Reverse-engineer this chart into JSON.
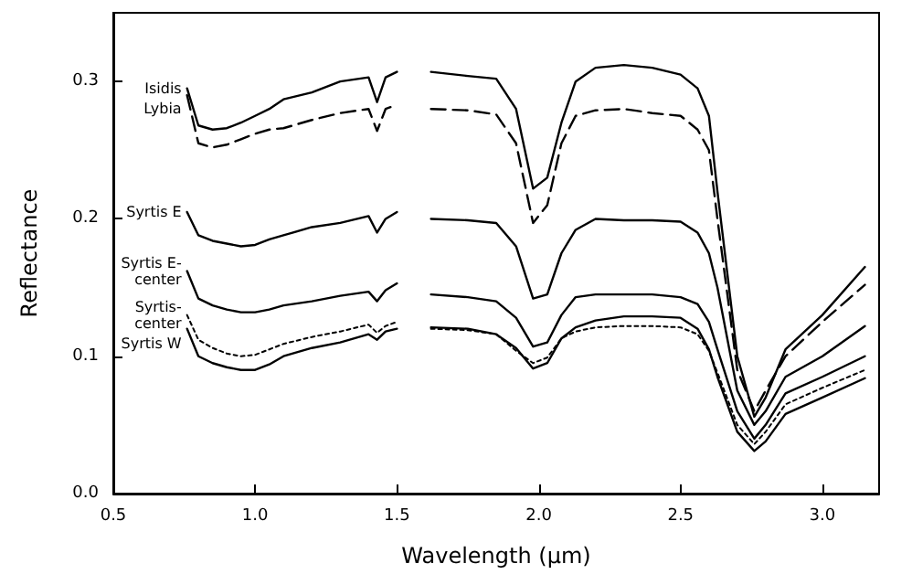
{
  "chart_data": {
    "type": "line",
    "xlabel": "Wavelength (μm)",
    "ylabel": "Reflectance",
    "x": [
      0.76,
      0.8,
      0.85,
      0.9,
      0.95,
      1.0,
      1.05,
      1.1,
      1.2,
      1.3,
      1.4,
      1.43,
      1.46,
      1.5,
      1.56,
      1.62,
      1.75,
      1.85,
      1.92,
      1.98,
      2.03,
      2.08,
      2.13,
      2.2,
      2.3,
      2.4,
      2.5,
      2.56,
      2.6,
      2.63,
      2.7,
      2.76,
      2.8,
      2.87,
      3.0,
      3.15
    ],
    "series": [
      {
        "name": "Isidis",
        "color": "#000000",
        "line_style": "solid",
        "values": [
          0.295,
          0.268,
          0.265,
          0.266,
          0.27,
          0.275,
          0.28,
          0.287,
          0.292,
          0.3,
          0.303,
          0.285,
          0.303,
          0.307,
          null,
          0.307,
          0.304,
          0.302,
          0.28,
          0.222,
          0.23,
          0.27,
          0.3,
          0.31,
          0.312,
          0.31,
          0.305,
          0.295,
          0.275,
          0.22,
          0.1,
          0.056,
          0.07,
          0.105,
          0.13,
          0.165
        ]
      },
      {
        "name": "Lybia",
        "color": "#000000",
        "line_style": "dashed",
        "values": [
          0.29,
          0.255,
          0.252,
          0.254,
          0.258,
          0.262,
          0.265,
          0.266,
          0.272,
          0.277,
          0.28,
          0.264,
          0.28,
          0.283,
          null,
          0.28,
          0.279,
          0.276,
          0.255,
          0.197,
          0.21,
          0.255,
          0.275,
          0.279,
          0.28,
          0.277,
          0.275,
          0.265,
          0.25,
          0.2,
          0.09,
          0.06,
          0.075,
          0.1,
          0.125,
          0.152
        ]
      },
      {
        "name": "Syrtis E",
        "color": "#000000",
        "line_style": "solid",
        "values": [
          0.205,
          0.188,
          0.184,
          0.182,
          0.18,
          0.181,
          0.185,
          0.188,
          0.194,
          0.197,
          0.202,
          0.19,
          0.2,
          0.205,
          null,
          0.2,
          0.199,
          0.197,
          0.18,
          0.142,
          0.145,
          0.175,
          0.192,
          0.2,
          0.199,
          0.199,
          0.198,
          0.19,
          0.175,
          0.15,
          0.075,
          0.05,
          0.06,
          0.085,
          0.1,
          0.122
        ]
      },
      {
        "name": "Syrtis E-center",
        "color": "#000000",
        "line_style": "solid",
        "values": [
          0.162,
          0.142,
          0.137,
          0.134,
          0.132,
          0.132,
          0.134,
          0.137,
          0.14,
          0.144,
          0.147,
          0.14,
          0.148,
          0.153,
          null,
          0.145,
          0.143,
          0.14,
          0.128,
          0.107,
          0.11,
          0.13,
          0.143,
          0.145,
          0.145,
          0.145,
          0.143,
          0.138,
          0.125,
          0.105,
          0.06,
          0.04,
          0.05,
          0.073,
          0.085,
          0.1
        ]
      },
      {
        "name": "Syrtis-center",
        "color": "#000000",
        "line_style": "dotted",
        "values": [
          0.13,
          0.112,
          0.106,
          0.102,
          0.1,
          0.101,
          0.105,
          0.109,
          0.114,
          0.118,
          0.123,
          0.117,
          0.122,
          0.125,
          null,
          0.12,
          0.119,
          0.116,
          0.104,
          0.095,
          0.099,
          0.113,
          0.118,
          0.121,
          0.122,
          0.122,
          0.121,
          0.116,
          0.104,
          0.088,
          0.05,
          0.036,
          0.045,
          0.065,
          0.077,
          0.09
        ]
      },
      {
        "name": "Syrtis W",
        "color": "#000000",
        "line_style": "solid",
        "values": [
          0.12,
          0.1,
          0.095,
          0.092,
          0.09,
          0.09,
          0.094,
          0.1,
          0.106,
          0.11,
          0.116,
          0.112,
          0.118,
          0.12,
          null,
          0.121,
          0.12,
          0.116,
          0.106,
          0.091,
          0.095,
          0.113,
          0.121,
          0.126,
          0.129,
          0.129,
          0.128,
          0.12,
          0.105,
          0.085,
          0.045,
          0.031,
          0.038,
          0.058,
          0.07,
          0.084
        ]
      }
    ],
    "xlim": [
      0.5,
      3.2
    ],
    "xticks": [
      0.5,
      {
        "value": 1,
        "label": "1.0"
      },
      1.5,
      {
        "value": 2,
        "label": "2.0"
      },
      2.5,
      {
        "value": 3,
        "label": "3.0"
      }
    ],
    "ylim": [
      0,
      0.35
    ],
    "yticks": [
      {
        "value": 0,
        "label": "0.0"
      },
      0.1,
      0.2,
      0.3
    ],
    "grid": false,
    "legend": false,
    "marker": "none"
  }
}
